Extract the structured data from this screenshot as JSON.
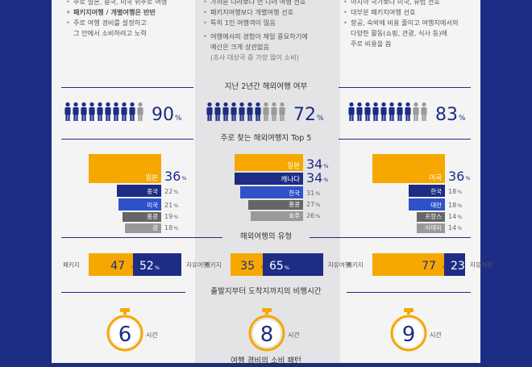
{
  "notes": {
    "col1": [
      "주로 일본, 중국, 미국 위주로 여행",
      "패키지여행 / 개별여행은 반반",
      "주로 여행 경비를 설정하고",
      "그 안에서 소비하려고 노력"
    ],
    "col2": [
      "가까운 나라보다 먼 나라 여행 선호",
      "패키지여행보다 개별여행 선호",
      "특히 1인 여행객이 많음",
      "여행에서의 경험이 제일 중요하기에",
      "예산은 크게 상관없음",
      "(조사 대상국 중 가장 많이 소비)"
    ],
    "col3": [
      "아시아 국가보다 미국, 유럽 선호",
      "대부분 패키지여행 선호",
      "항공, 숙박에 비용 줄이고 여행지에서의",
      "다양한 활동(쇼핑, 관광, 식사 등)에",
      "주로 비용을 씀"
    ]
  },
  "sections": {
    "travel": "지난 2년간 해외여행 여부",
    "top5": "주로 찾는 해외여행지 Top 5",
    "type": "해외여행의 유형",
    "flight": "출발지부터 도착지까지의 비행시간",
    "bottom": "여행 경비의 소비 패턴"
  },
  "labels": {
    "package": "패키지",
    "free": "자유여행",
    "hours": "시간",
    "percent": "%"
  },
  "colors": {
    "navy": "#1d2c85",
    "orange": "#f6a800",
    "blue": "#2f52c9",
    "gray_dark": "#666666",
    "gray_light": "#999999",
    "person_gray": "#9a9a9a"
  },
  "chart_data": [
    {
      "type": "bar",
      "title": "지난 2년간 해외여행 여부",
      "values": [
        90,
        72,
        83
      ],
      "unit": "%"
    },
    {
      "type": "bar",
      "title": "주로 찾는 해외여행지 Top 5",
      "series": [
        {
          "categories": [
            "일본",
            "중국",
            "미국",
            "홍콩",
            "괌"
          ],
          "values": [
            36,
            22,
            21,
            19,
            18
          ]
        },
        {
          "categories": [
            "일본",
            "캐나다",
            "한국",
            "홍콩",
            "호주"
          ],
          "values": [
            34,
            34,
            31,
            27,
            26
          ]
        },
        {
          "categories": [
            "미국",
            "한국",
            "대만",
            "프랑스",
            "이태리"
          ],
          "values": [
            36,
            18,
            18,
            14,
            14
          ]
        }
      ]
    },
    {
      "type": "bar",
      "title": "해외여행의 유형",
      "series": [
        {
          "name": "패키지",
          "values": [
            47,
            35,
            77
          ]
        },
        {
          "name": "자유여행",
          "values": [
            52,
            65,
            23
          ]
        }
      ]
    },
    {
      "type": "bar",
      "title": "출발지부터 도착지까지의 비행시간",
      "values": [
        6,
        8,
        9
      ],
      "unit": "시간"
    }
  ]
}
